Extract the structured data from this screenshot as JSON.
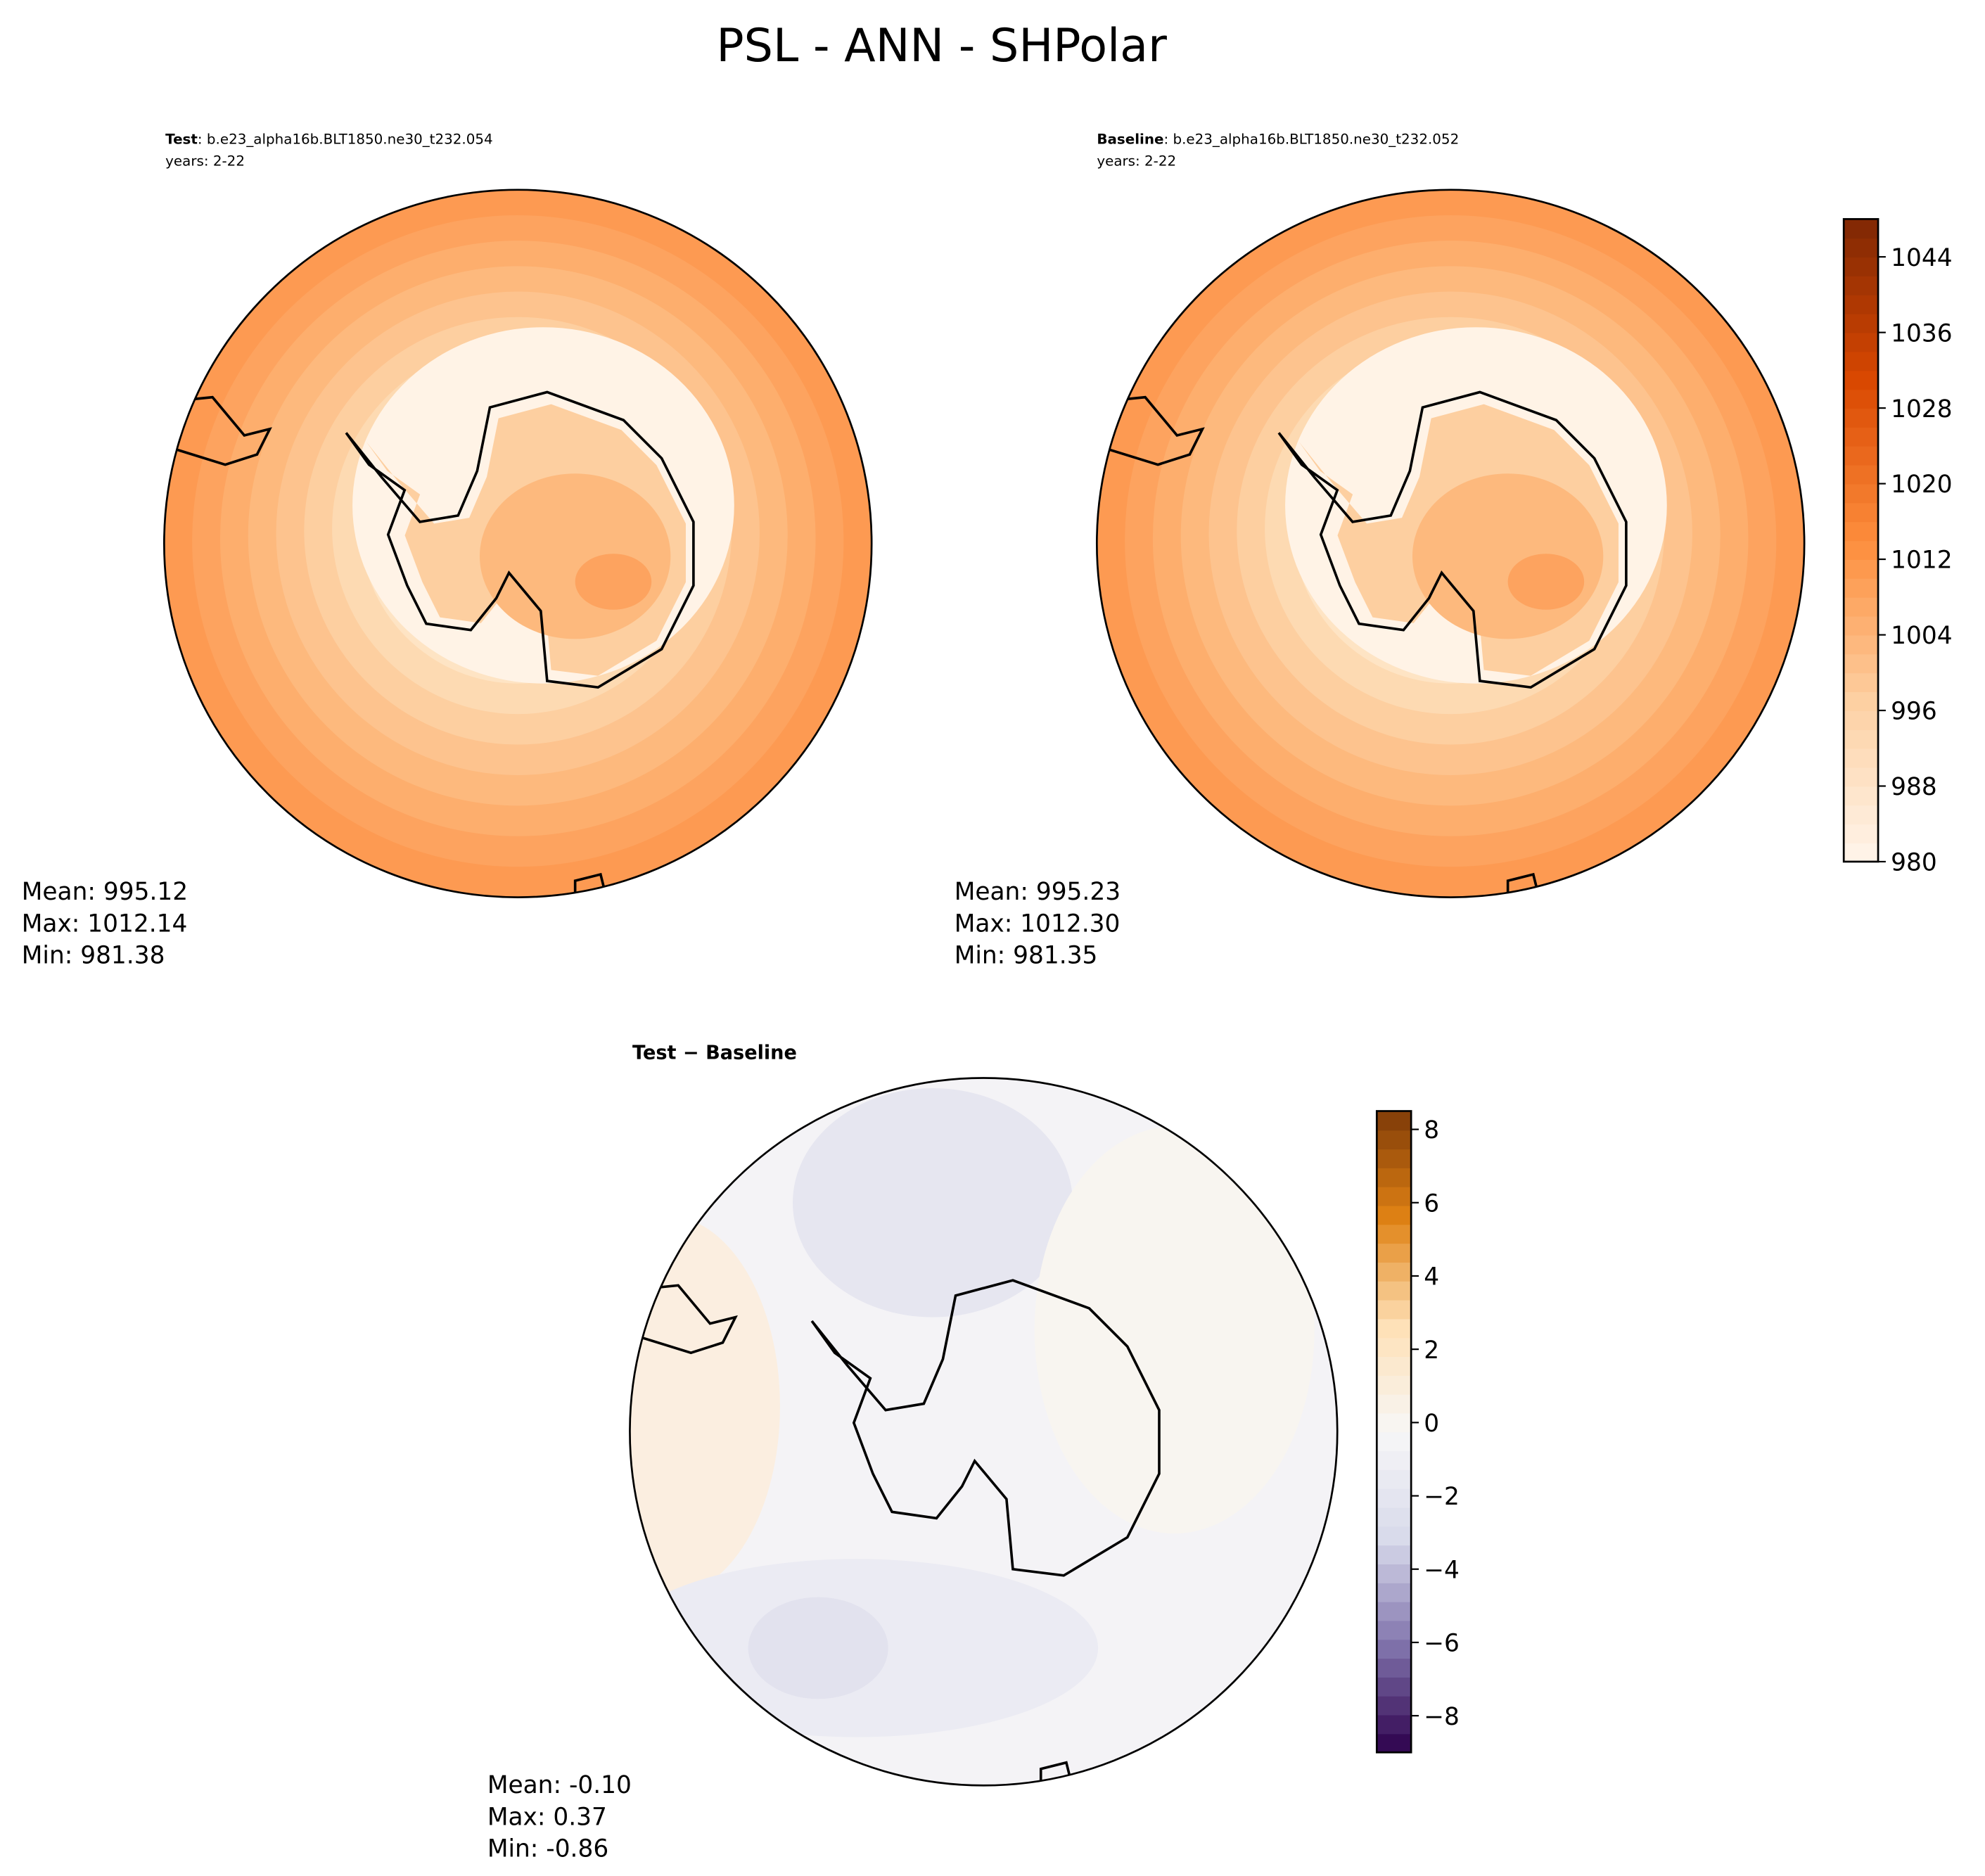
{
  "title": "PSL - ANN - SHPolar",
  "chart_data": [
    {
      "type": "map",
      "case_label": "Test",
      "case_name": ": b.e23_alpha16b.BLT1850.ne30_t232.054",
      "years": "years: 2-22",
      "stats": [
        "Mean: 995.12",
        "Max: 1012.14",
        "Min: 981.38"
      ]
    },
    {
      "type": "map",
      "case_label": "Baseline",
      "case_name": ": b.e23_alpha16b.BLT1850.ne30_t232.052",
      "years": "years: 2-22",
      "stats": [
        "Mean: 995.23",
        "Max: 1012.30",
        "Min: 981.35"
      ],
      "colorbar": {
        "lim": [
          980,
          1048
        ],
        "ticks": [
          980,
          988,
          996,
          1004,
          1012,
          1020,
          1028,
          1036,
          1044
        ],
        "colormap": [
          "#fff5eb",
          "#fdd0a2",
          "#fd8d3c",
          "#d94801",
          "#7f2704"
        ]
      }
    },
    {
      "type": "difference-map",
      "title": "Test − Baseline",
      "stats": [
        "Mean: -0.10",
        "Max:  0.37",
        "Min: -0.86"
      ],
      "colorbar": {
        "lim": [
          -9,
          8.5
        ],
        "ticks": [
          {
            "value": -8,
            "label": "−8"
          },
          {
            "value": -6,
            "label": "−6"
          },
          {
            "value": -4,
            "label": "−4"
          },
          {
            "value": -2,
            "label": "−2"
          },
          0,
          2,
          4,
          6,
          8
        ],
        "colormap": [
          "#2d004b",
          "#8073ac",
          "#d8daeb",
          "#f7f7f7",
          "#fee0b6",
          "#e08214",
          "#7f3b08"
        ]
      }
    }
  ]
}
